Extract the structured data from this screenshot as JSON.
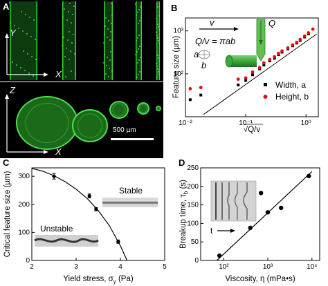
{
  "panels": {
    "a": {
      "label": "A",
      "top_axes": {
        "y": "Y",
        "x": "X"
      },
      "bottom_axes": {
        "z": "Z",
        "x": "X"
      },
      "scale_bar": "500 µm"
    },
    "b": {
      "label": "B",
      "formula": "Q/v = πab",
      "flow_v": "v",
      "flow_q": "Q",
      "ellipse_a": "a",
      "ellipse_b": "b"
    },
    "c": {
      "label": "C",
      "stable": "Stable",
      "unstable": "Unstable"
    },
    "d": {
      "label": "D",
      "t_arrow": "t"
    }
  },
  "chart_data": [
    {
      "panel": "B",
      "type": "scatter",
      "xscale": "log",
      "yscale": "log",
      "xlabel": "√Q/v",
      "ylabel": "Feature size (µm)",
      "xlim": [
        0.01,
        1.6
      ],
      "ylim": [
        10,
        2000
      ],
      "x_ticks": [
        0.01,
        0.1,
        1
      ],
      "x_ticklabels": [
        "10⁻²",
        "10⁻¹",
        "10⁰"
      ],
      "y_ticks": [
        100,
        1000
      ],
      "y_ticklabels": [
        "10²",
        "10³"
      ],
      "legend_position": "lower-right",
      "series": [
        {
          "name": "Width, a",
          "color": "#000000",
          "marker": "square",
          "x": [
            0.012,
            0.018,
            0.075,
            0.1,
            0.13,
            0.17,
            0.2,
            0.25,
            0.3,
            0.35,
            0.4,
            0.5,
            0.6,
            0.7,
            0.8,
            0.95,
            1.1
          ],
          "y": [
            25,
            32,
            55,
            70,
            95,
            130,
            160,
            200,
            230,
            280,
            320,
            380,
            450,
            520,
            600,
            720,
            850
          ]
        },
        {
          "name": "Height, b",
          "color": "#e01010",
          "marker": "circle",
          "x": [
            0.012,
            0.018,
            0.075,
            0.1,
            0.13,
            0.17,
            0.2,
            0.25,
            0.3,
            0.35,
            0.4,
            0.5,
            0.6,
            0.7,
            0.8,
            0.95,
            1.1,
            1.3
          ],
          "y": [
            45,
            48,
            75,
            80,
            110,
            140,
            180,
            215,
            250,
            300,
            340,
            400,
            470,
            540,
            630,
            760,
            900,
            1100
          ]
        }
      ],
      "reference_line": {
        "x": [
          0.02,
          1.5
        ],
        "y": [
          11.3,
          846
        ]
      }
    },
    {
      "panel": "C",
      "type": "scatter",
      "xlabel": "Yield stress, σ",
      "xlabel_sub": "y",
      "xlabel_unit": " (Pa)",
      "ylabel": "Critical feature size (µm)",
      "xlim": [
        2,
        5
      ],
      "ylim": [
        0,
        330
      ],
      "x_ticks": [
        2,
        3,
        4,
        5
      ],
      "y_ticks": [
        0,
        100,
        200,
        300
      ],
      "series": [
        {
          "name": "",
          "color": "#000000",
          "marker": "circle",
          "x": [
            2.5,
            3.3,
            3.45,
            3.95
          ],
          "y": [
            300,
            230,
            183,
            67
          ],
          "yerr": [
            10,
            7,
            6,
            6
          ]
        }
      ],
      "fit_curve": {
        "x": [
          2.0,
          2.25,
          2.5,
          2.75,
          3.0,
          3.25,
          3.5,
          3.75,
          4.0,
          4.15
        ],
        "y": [
          328,
          318,
          302,
          281,
          254,
          221,
          178,
          124,
          52,
          0
        ]
      }
    },
    {
      "panel": "D",
      "type": "scatter",
      "xscale": "log",
      "xlabel": "Viscosity, η (mPa•s)",
      "ylabel": "Breakup time, τ",
      "ylabel_sub": "b",
      "ylabel_unit": " (s)",
      "xlim": [
        30,
        15000
      ],
      "ylim": [
        0,
        250
      ],
      "x_ticks": [
        100,
        1000,
        10000
      ],
      "x_ticklabels": [
        "10²",
        "10³",
        "10⁴"
      ],
      "y_ticks": [
        0,
        50,
        100,
        150,
        200,
        250
      ],
      "series": [
        {
          "name": "",
          "color": "#000000",
          "marker": "circle",
          "x": [
            80,
            400,
            700,
            1000,
            2000,
            8500
          ],
          "y": [
            13,
            88,
            182,
            130,
            142,
            228
          ]
        }
      ],
      "fit_line": {
        "x": [
          70,
          10000
        ],
        "y": [
          0,
          240
        ]
      }
    }
  ]
}
